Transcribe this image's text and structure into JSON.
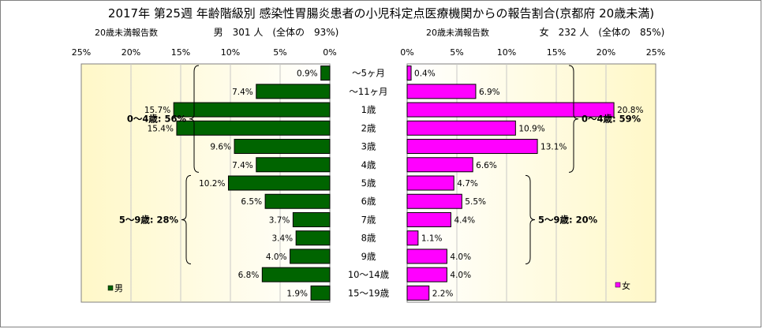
{
  "chart_data": {
    "type": "bar",
    "title": "2017年 第25週 年齢階級別 感染性胃腸炎患者の小児科定点医療機関からの報告割合(京都府 20歳未満)",
    "categories": [
      "～5ヶ月",
      "～11ヶ月",
      "1歳",
      "2歳",
      "3歳",
      "4歳",
      "5歳",
      "6歳",
      "7歳",
      "8歳",
      "9歳",
      "10～14歳",
      "15～19歳"
    ],
    "tick_labels": [
      "0%",
      "5%",
      "10%",
      "15%",
      "20%",
      "25%"
    ],
    "axis_range": [
      0,
      25
    ],
    "series": [
      {
        "name": "男",
        "side": "left",
        "header": "男　301 人　(全体の　93%)",
        "subheader": "20歳未満報告数",
        "color": "#006400",
        "values": [
          0.9,
          7.4,
          15.7,
          15.4,
          9.6,
          7.4,
          10.2,
          6.5,
          3.7,
          3.4,
          4.0,
          6.8,
          1.9
        ],
        "labels": [
          "0.9%",
          "7.4%",
          "15.7%",
          "15.4%",
          "9.6%",
          "7.4%",
          "10.2%",
          "6.5%",
          "3.7%",
          "3.4%",
          "4.0%",
          "6.8%",
          "1.9%"
        ],
        "legend": "男",
        "brackets": [
          {
            "label": "0～4歳: 56%",
            "from": 0,
            "to": 5
          },
          {
            "label": "5～9歳: 28%",
            "from": 6,
            "to": 10
          }
        ]
      },
      {
        "name": "女",
        "side": "right",
        "header": "女　232 人　(全体の　85%)",
        "subheader": "20歳未満報告数",
        "color": "#ff00ff",
        "values": [
          0.4,
          6.9,
          20.8,
          10.9,
          13.1,
          6.6,
          4.7,
          5.5,
          4.4,
          1.1,
          4.0,
          4.0,
          2.2
        ],
        "labels": [
          "0.4%",
          "6.9%",
          "20.8%",
          "10.9%",
          "13.1%",
          "6.6%",
          "4.7%",
          "5.5%",
          "4.4%",
          "1.1%",
          "4.0%",
          "4.0%",
          "2.2%"
        ],
        "legend": "女",
        "brackets": [
          {
            "label": "0～4歳: 59%",
            "from": 0,
            "to": 5
          },
          {
            "label": "5～9歳: 20%",
            "from": 6,
            "to": 10
          }
        ]
      }
    ]
  }
}
